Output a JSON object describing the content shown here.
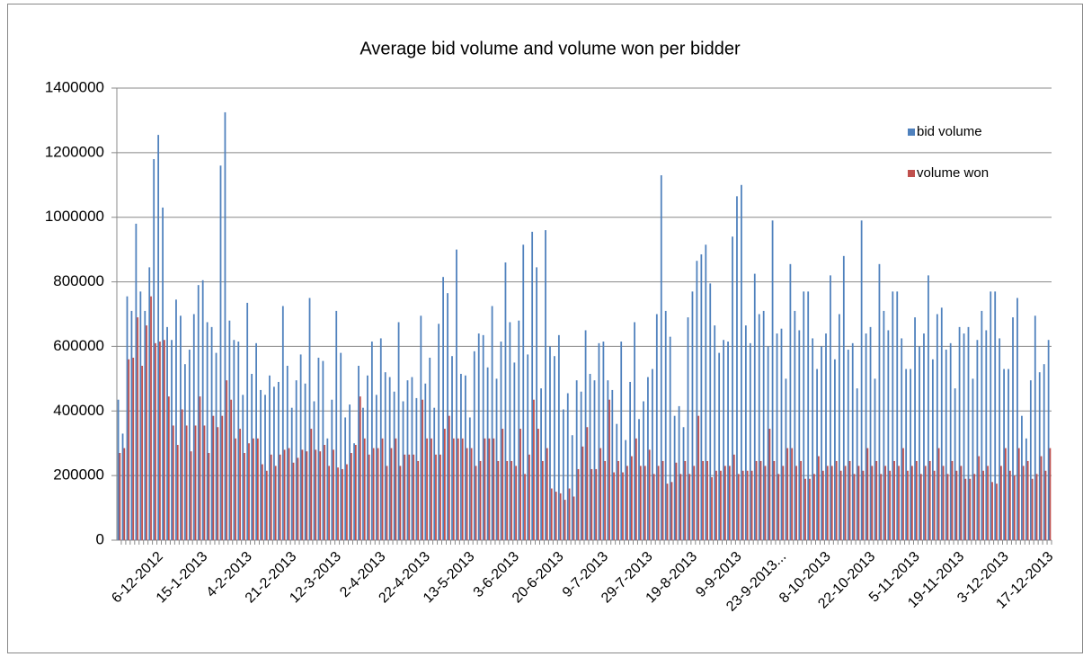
{
  "chart_data": {
    "type": "bar",
    "title": "Average bid volume and volume won per bidder",
    "categories": [
      null,
      null,
      null,
      null,
      null,
      null,
      null,
      null,
      null,
      "6-12-2012",
      null,
      null,
      null,
      null,
      null,
      null,
      null,
      null,
      null,
      "15-1-2013",
      null,
      null,
      null,
      null,
      null,
      null,
      null,
      null,
      null,
      "4-2-2013",
      null,
      null,
      null,
      null,
      null,
      null,
      null,
      null,
      null,
      "21-2-2013",
      null,
      null,
      null,
      null,
      null,
      null,
      null,
      null,
      null,
      "12-3-2013",
      null,
      null,
      null,
      null,
      null,
      null,
      null,
      null,
      null,
      "2-4-2013",
      null,
      null,
      null,
      null,
      null,
      null,
      null,
      null,
      null,
      "22-4-2013",
      null,
      null,
      null,
      null,
      null,
      null,
      null,
      null,
      null,
      "13-5-2013",
      null,
      null,
      null,
      null,
      null,
      null,
      null,
      null,
      null,
      "3-6-2013",
      null,
      null,
      null,
      null,
      null,
      null,
      null,
      null,
      null,
      "20-6-2013",
      null,
      null,
      null,
      null,
      null,
      null,
      null,
      null,
      null,
      "9-7-2013",
      null,
      null,
      null,
      null,
      null,
      null,
      null,
      null,
      null,
      "29-7-2013",
      null,
      null,
      null,
      null,
      null,
      null,
      null,
      null,
      null,
      "19-8-2013",
      null,
      null,
      null,
      null,
      null,
      null,
      null,
      null,
      null,
      "9-9-2013",
      null,
      null,
      null,
      null,
      null,
      null,
      null,
      null,
      null,
      "23-9-2013...",
      null,
      null,
      null,
      null,
      null,
      null,
      null,
      null,
      null,
      "8-10-2013",
      null,
      null,
      null,
      null,
      null,
      null,
      null,
      null,
      null,
      "22-10-2013",
      null,
      null,
      null,
      null,
      null,
      null,
      null,
      null,
      null,
      "5-11-2013",
      null,
      null,
      null,
      null,
      null,
      null,
      null,
      null,
      null,
      "19-11-2013",
      null,
      null,
      null,
      null,
      null,
      null,
      null,
      null,
      null,
      "3-12-2013",
      null,
      null,
      null,
      null,
      null,
      null,
      null,
      null,
      null,
      "17-12-2013"
    ],
    "series": [
      {
        "name": "bid volume",
        "color": "#4f81bd",
        "values": [
          435000,
          330000,
          755000,
          710000,
          980000,
          770000,
          710000,
          845000,
          1180000,
          1255000,
          1030000,
          660000,
          620000,
          745000,
          695000,
          545000,
          590000,
          700000,
          790000,
          805000,
          675000,
          660000,
          580000,
          1160000,
          1325000,
          680000,
          620000,
          615000,
          450000,
          735000,
          515000,
          610000,
          465000,
          450000,
          510000,
          475000,
          490000,
          725000,
          540000,
          410000,
          495000,
          575000,
          485000,
          750000,
          430000,
          565000,
          555000,
          315000,
          435000,
          710000,
          580000,
          380000,
          420000,
          300000,
          540000,
          410000,
          510000,
          615000,
          450000,
          625000,
          520000,
          505000,
          460000,
          675000,
          430000,
          495000,
          505000,
          440000,
          695000,
          485000,
          565000,
          410000,
          670000,
          815000,
          765000,
          570000,
          900000,
          515000,
          510000,
          380000,
          585000,
          640000,
          635000,
          535000,
          725000,
          500000,
          615000,
          860000,
          675000,
          550000,
          680000,
          915000,
          575000,
          955000,
          845000,
          470000,
          960000,
          600000,
          570000,
          635000,
          405000,
          455000,
          325000,
          495000,
          460000,
          650000,
          515000,
          495000,
          610000,
          615000,
          495000,
          465000,
          360000,
          615000,
          310000,
          490000,
          675000,
          375000,
          430000,
          505000,
          530000,
          700000,
          1130000,
          710000,
          630000,
          385000,
          415000,
          350000,
          690000,
          770000,
          865000,
          885000,
          915000,
          795000,
          665000,
          580000,
          620000,
          615000,
          940000,
          1065000,
          1100000,
          665000,
          610000,
          825000,
          700000,
          710000,
          600000,
          990000,
          640000,
          655000,
          500000,
          855000,
          710000,
          650000,
          770000,
          770000,
          625000,
          530000,
          600000,
          640000,
          820000,
          560000,
          700000,
          880000,
          590000,
          610000,
          470000,
          990000,
          640000,
          660000,
          500000,
          855000,
          710000,
          650000,
          770000,
          770000,
          625000,
          530000,
          530000,
          690000,
          600000,
          640000,
          820000,
          560000,
          700000,
          720000,
          590000,
          610000,
          470000,
          660000,
          640000,
          660000,
          500000,
          620000,
          710000,
          650000,
          770000,
          770000,
          625000,
          530000,
          530000,
          690000,
          750000,
          385000,
          315000,
          495000,
          695000,
          520000,
          545000,
          620000
        ]
      },
      {
        "name": "volume won",
        "color": "#c0504d",
        "values": [
          270000,
          285000,
          560000,
          565000,
          690000,
          540000,
          665000,
          755000,
          610000,
          615000,
          620000,
          445000,
          355000,
          295000,
          405000,
          355000,
          275000,
          355000,
          445000,
          355000,
          270000,
          385000,
          350000,
          385000,
          495000,
          435000,
          315000,
          345000,
          270000,
          300000,
          315000,
          315000,
          235000,
          215000,
          265000,
          230000,
          265000,
          280000,
          285000,
          240000,
          255000,
          280000,
          275000,
          345000,
          280000,
          275000,
          295000,
          230000,
          280000,
          225000,
          220000,
          235000,
          270000,
          295000,
          445000,
          315000,
          265000,
          285000,
          285000,
          315000,
          230000,
          285000,
          315000,
          230000,
          265000,
          265000,
          265000,
          245000,
          435000,
          315000,
          315000,
          265000,
          265000,
          345000,
          385000,
          315000,
          315000,
          315000,
          285000,
          285000,
          230000,
          245000,
          315000,
          315000,
          315000,
          245000,
          345000,
          245000,
          245000,
          230000,
          345000,
          205000,
          265000,
          435000,
          345000,
          245000,
          285000,
          160000,
          150000,
          145000,
          125000,
          160000,
          135000,
          220000,
          290000,
          350000,
          220000,
          220000,
          285000,
          245000,
          435000,
          210000,
          245000,
          210000,
          230000,
          260000,
          315000,
          230000,
          230000,
          280000,
          205000,
          230000,
          245000,
          175000,
          180000,
          240000,
          205000,
          245000,
          205000,
          230000,
          385000,
          245000,
          245000,
          195000,
          215000,
          215000,
          230000,
          230000,
          265000,
          205000,
          215000,
          215000,
          215000,
          245000,
          245000,
          230000,
          345000,
          245000,
          205000,
          230000,
          285000,
          285000,
          230000,
          245000,
          190000,
          190000,
          205000,
          260000,
          215000,
          230000,
          230000,
          245000,
          215000,
          230000,
          245000,
          205000,
          230000,
          215000,
          285000,
          230000,
          245000,
          205000,
          230000,
          215000,
          245000,
          230000,
          285000,
          215000,
          230000,
          245000,
          205000,
          230000,
          245000,
          215000,
          285000,
          230000,
          205000,
          245000,
          215000,
          230000,
          190000,
          190000,
          205000,
          260000,
          215000,
          230000,
          180000,
          175000,
          230000,
          285000,
          215000,
          200000,
          285000,
          230000,
          245000,
          190000,
          205000,
          260000,
          215000,
          285000
        ]
      }
    ],
    "ylim": [
      0,
      1400000
    ],
    "yticks": [
      0,
      200000,
      400000,
      600000,
      800000,
      1000000,
      1200000,
      1400000
    ],
    "grid": true,
    "legend": "right"
  }
}
